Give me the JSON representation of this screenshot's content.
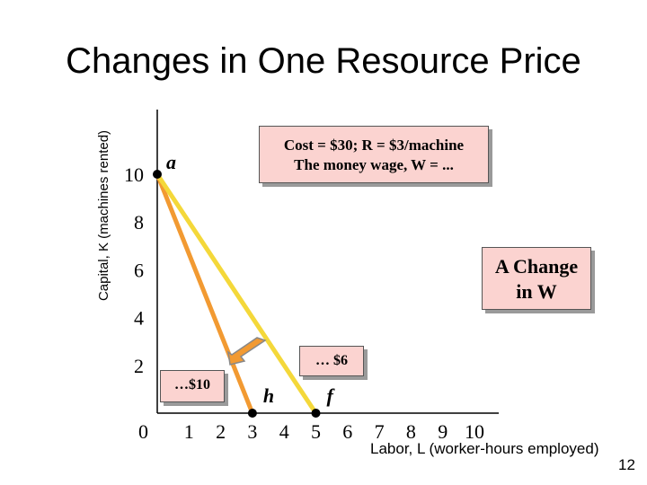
{
  "slide": {
    "title": "Changes in One Resource Price",
    "page_number": "12"
  },
  "info_box": {
    "line1": "Cost = $30; R = $3/machine",
    "line2": "The money wage, W = ..."
  },
  "change_box": {
    "line1": "A Change",
    "line2": "in W"
  },
  "chart_data": {
    "type": "line",
    "xlabel": "Labor, L (worker-hours employed)",
    "ylabel": "Capital, K (machines rented)",
    "x_ticks": [
      "1",
      "2",
      "3",
      "4",
      "5",
      "6",
      "7",
      "8",
      "9",
      "10"
    ],
    "y_ticks": [
      "0",
      "2",
      "4",
      "6",
      "8",
      "10"
    ],
    "xlim": [
      0,
      10
    ],
    "ylim": [
      0,
      10
    ],
    "grid": false,
    "series": [
      {
        "wage_label": "…$10",
        "color": "#f29a32",
        "points": [
          [
            0,
            10
          ],
          [
            3,
            0
          ]
        ]
      },
      {
        "wage_label": "… $6",
        "color": "#f4d83a",
        "points": [
          [
            0,
            10
          ],
          [
            5,
            0
          ]
        ]
      }
    ],
    "points": [
      {
        "label": "a",
        "x": 0,
        "y": 10
      },
      {
        "label": "h",
        "x": 3,
        "y": 0
      },
      {
        "label": "f",
        "x": 5,
        "y": 0
      }
    ],
    "annotation_arrow_color": "#f29a32"
  }
}
